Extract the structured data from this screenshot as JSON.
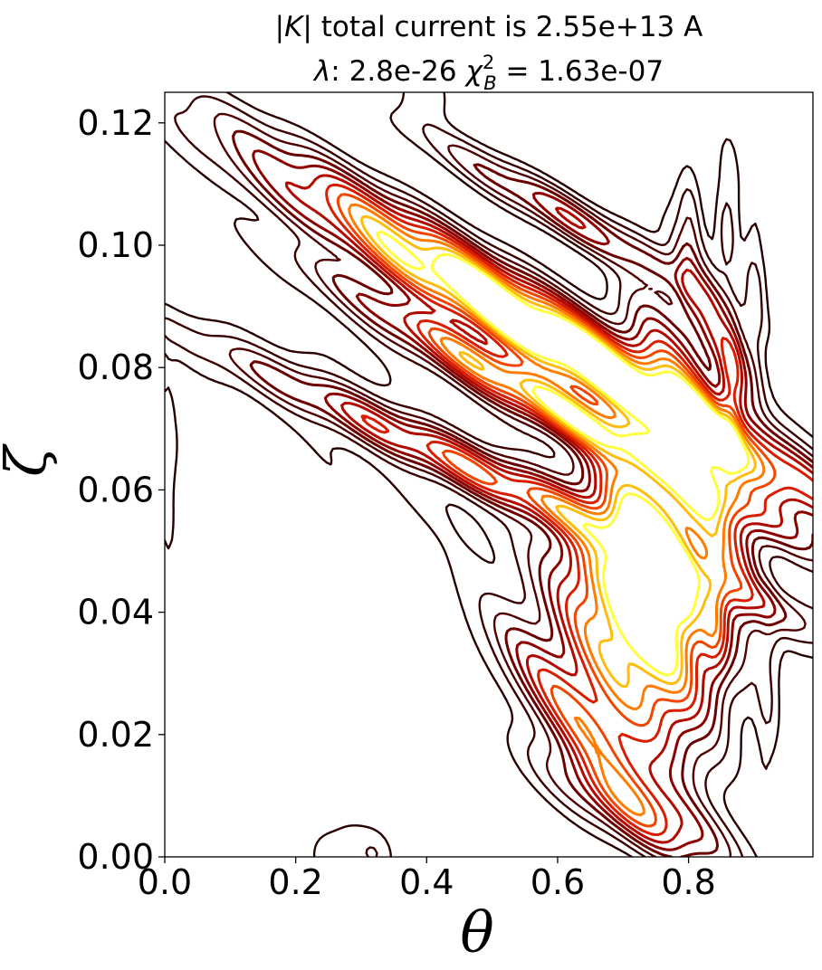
{
  "chart_data": {
    "type": "contour",
    "title_lines": [
      "|K| total current is 2.55e+13 A",
      "λ: 2.8e-26 χ²_B = 1.63e-07"
    ],
    "title": {
      "line1_sym": "|K|",
      "line1_text": " total current is 2.55e+13 A",
      "line2_lambda": "λ",
      "line2_lambda_value": ": 2.8e-26 ",
      "line2_chi": "χ",
      "line2_chi_sup": "2",
      "line2_chi_sub": "B",
      "line2_chi_value": " = 1.63e-07"
    },
    "xlabel": "θ",
    "ylabel": "ζ",
    "xlim": [
      0.0,
      0.99
    ],
    "ylim": [
      0.0,
      0.125
    ],
    "xticks": [
      0.0,
      0.2,
      0.4,
      0.6,
      0.8
    ],
    "xtick_labels": [
      "0.0",
      "0.2",
      "0.4",
      "0.6",
      "0.8"
    ],
    "yticks": [
      0.0,
      0.02,
      0.04,
      0.06,
      0.08,
      0.1,
      0.12
    ],
    "ytick_labels": [
      "0.00",
      "0.02",
      "0.04",
      "0.06",
      "0.08",
      "0.10",
      "0.12"
    ],
    "colormap": [
      "#1a0000",
      "#5a0000",
      "#a00000",
      "#e02000",
      "#ff6000",
      "#ffb000",
      "#ffff40"
    ],
    "levels": [
      0.03,
      0.07,
      0.12,
      0.18,
      0.25,
      0.33,
      0.42,
      0.52,
      0.63,
      0.75,
      0.87
    ],
    "blobs": [
      {
        "x": 0.565,
        "y": 0.088,
        "sx": 0.028,
        "sy": 0.03,
        "rot": 58,
        "amp": 1.0
      },
      {
        "x": 0.615,
        "y": 0.082,
        "sx": 0.026,
        "sy": 0.03,
        "rot": 60,
        "amp": 0.9
      },
      {
        "x": 0.66,
        "y": 0.07,
        "sx": 0.022,
        "sy": 0.022,
        "rot": 62,
        "amp": 0.8
      },
      {
        "x": 0.54,
        "y": 0.06,
        "sx": 0.02,
        "sy": 0.03,
        "rot": 65,
        "amp": 0.6
      },
      {
        "x": 0.7,
        "y": 0.035,
        "sx": 0.05,
        "sy": 0.012,
        "rot": 25,
        "amp": 1.0
      },
      {
        "x": 0.73,
        "y": 0.05,
        "sx": 0.04,
        "sy": 0.011,
        "rot": 15,
        "amp": 1.0
      },
      {
        "x": 0.77,
        "y": 0.046,
        "sx": 0.03,
        "sy": 0.01,
        "rot": 10,
        "amp": 0.85
      },
      {
        "x": 0.82,
        "y": 0.06,
        "sx": 0.03,
        "sy": 0.01,
        "rot": 10,
        "amp": 0.7
      },
      {
        "x": 0.64,
        "y": 0.022,
        "sx": 0.03,
        "sy": 0.012,
        "rot": 40,
        "amp": 0.6
      },
      {
        "x": 0.72,
        "y": 0.008,
        "sx": 0.03,
        "sy": 0.01,
        "rot": 60,
        "amp": 0.5
      },
      {
        "x": 0.78,
        "y": 0.078,
        "sx": 0.03,
        "sy": 0.01,
        "rot": 20,
        "amp": 0.45
      },
      {
        "x": 0.84,
        "y": 0.087,
        "sx": 0.02,
        "sy": 0.01,
        "rot": 20,
        "amp": 0.35
      },
      {
        "x": 0.865,
        "y": 0.073,
        "sx": 0.012,
        "sy": 0.008,
        "rot": 0,
        "amp": 0.35
      },
      {
        "x": 0.84,
        "y": 0.04,
        "sx": 0.015,
        "sy": 0.008,
        "rot": 0,
        "amp": 0.4
      },
      {
        "x": 0.88,
        "y": 0.045,
        "sx": 0.02,
        "sy": 0.01,
        "rot": 0,
        "amp": 0.2
      },
      {
        "x": 0.5,
        "y": 0.08,
        "sx": 0.018,
        "sy": 0.02,
        "rot": 60,
        "amp": 0.35
      },
      {
        "x": 0.61,
        "y": 0.105,
        "sx": 0.018,
        "sy": 0.015,
        "rot": 60,
        "amp": 0.35
      },
      {
        "x": 0.8,
        "y": 0.1,
        "sx": 0.012,
        "sy": 0.008,
        "rot": 0,
        "amp": 0.12
      },
      {
        "x": 0.86,
        "y": 0.105,
        "sx": 0.012,
        "sy": 0.008,
        "rot": 0,
        "amp": 0.1
      },
      {
        "x": 0.9,
        "y": 0.09,
        "sx": 0.012,
        "sy": 0.01,
        "rot": 0,
        "amp": 0.1
      },
      {
        "x": 0.92,
        "y": 0.03,
        "sx": 0.012,
        "sy": 0.012,
        "rot": 0,
        "amp": 0.08
      },
      {
        "x": 0.27,
        "y": 0.0,
        "sx": 0.03,
        "sy": 0.004,
        "rot": 0,
        "amp": 0.08
      },
      {
        "x": 0.32,
        "y": 0.0,
        "sx": 0.02,
        "sy": 0.003,
        "rot": 0,
        "amp": 0.06
      },
      {
        "x": 0.005,
        "y": 0.063,
        "sx": 0.008,
        "sy": 0.01,
        "rot": 0,
        "amp": 0.06
      },
      {
        "x": 0.4,
        "y": 0.125,
        "sx": 0.03,
        "sy": 0.004,
        "rot": 0,
        "amp": 0.06
      },
      {
        "x": 0.7,
        "y": 0.06,
        "sx": 0.15,
        "sy": 0.055,
        "rot": 75,
        "amp": 0.05
      }
    ]
  }
}
